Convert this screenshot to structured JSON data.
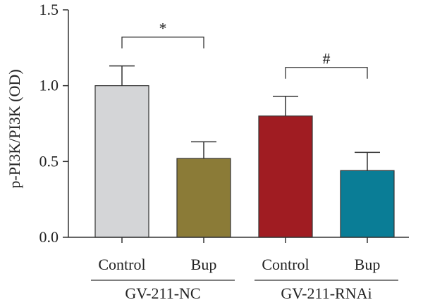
{
  "chart_data": {
    "type": "bar",
    "title": "",
    "xlabel": "",
    "ylabel": "p-PI3K/PI3K (OD)",
    "ylim": [
      0,
      1.5
    ],
    "yticks": [
      0.0,
      0.5,
      1.0,
      1.5
    ],
    "ytick_labels": [
      "0.0",
      "0.5",
      "1.0",
      "1.5"
    ],
    "grid": false,
    "categories": [
      "Control",
      "Bup",
      "Control",
      "Bup"
    ],
    "groups": [
      {
        "label": "GV-211-NC",
        "members": [
          0,
          1
        ]
      },
      {
        "label": "GV-211-RNAi",
        "members": [
          2,
          3
        ]
      }
    ],
    "values": [
      1.0,
      0.52,
      0.8,
      0.44
    ],
    "errors": [
      0.13,
      0.11,
      0.13,
      0.12
    ],
    "colors": [
      "#d4d5d7",
      "#8b7b37",
      "#a01c22",
      "#0a7d96"
    ],
    "annotations": [
      {
        "symbol": "*",
        "from": 0,
        "to": 1,
        "y": 1.13
      },
      {
        "symbol": "#",
        "from": 2,
        "to": 3,
        "y": 0.93
      }
    ]
  }
}
